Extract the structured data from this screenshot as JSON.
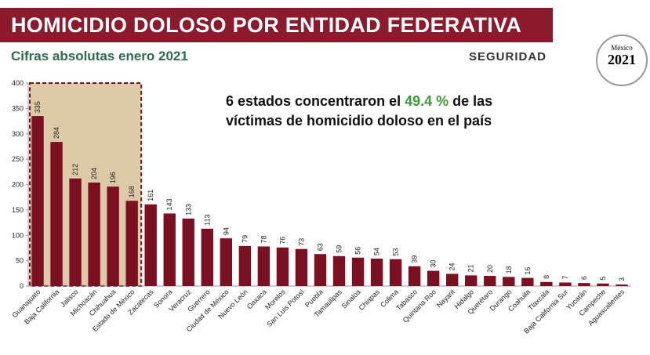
{
  "chart_data": {
    "type": "bar",
    "title": "HOMICIDIO DOLOSO POR ENTIDAD FEDERATIVA",
    "subtitle": "Cifras absolutas enero 2021",
    "annotation": [
      "6 estados concentraron el",
      "49.4 %",
      "de las",
      "víctimas de homicidio doloso en el país"
    ],
    "logos": {
      "seguridad": "SEGURIDAD",
      "mexico": "México",
      "year": "2021"
    },
    "categories": [
      "Guanajuato",
      "Baja California",
      "Jalisco",
      "Michoacán",
      "Chihuahua",
      "Estado de México",
      "Zacatecas",
      "Sonora",
      "Veracruz",
      "Guerrero",
      "Ciudad de México",
      "Nuevo León",
      "Oaxaca",
      "Morelos",
      "San Luis Potosí",
      "Puebla",
      "Tamaulipas",
      "Sinaloa",
      "Chiapas",
      "Colima",
      "Tabasco",
      "Quintana Roo",
      "Nayarit",
      "Hidalgo",
      "Querétaro",
      "Durango",
      "Coahuila",
      "Tlaxcala",
      "Baja California Sur",
      "Yucatán",
      "Campeche",
      "Aguascalientes"
    ],
    "values": [
      335,
      284,
      212,
      204,
      196,
      168,
      161,
      143,
      133,
      113,
      94,
      79,
      78,
      76,
      73,
      63,
      59,
      56,
      54,
      53,
      39,
      30,
      24,
      21,
      20,
      18,
      16,
      8,
      7,
      6,
      5,
      3
    ],
    "color": "#7a1020",
    "highlight_bars": 6,
    "highlight_color": "#dccaa6",
    "ylim": [
      0,
      400
    ],
    "yticks": [
      0,
      50,
      100,
      150,
      200,
      250,
      300,
      350,
      400
    ]
  }
}
